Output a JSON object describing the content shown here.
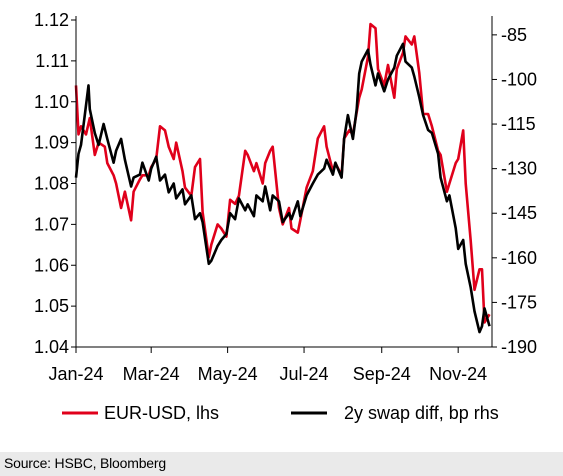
{
  "chart_data": {
    "type": "line",
    "title": "",
    "xlabel": "",
    "ylabel": "",
    "x_ticks": [
      "Jan-24",
      "Mar-24",
      "May-24",
      "Jul-24",
      "Sep-24",
      "Nov-24"
    ],
    "x_range": [
      "2024-01-01",
      "2024-11-28"
    ],
    "y_left": {
      "ticks": [
        "1.12",
        "1.11",
        "1.10",
        "1.09",
        "1.08",
        "1.07",
        "1.06",
        "1.05",
        "1.04"
      ],
      "ylim": [
        1.04,
        1.12
      ]
    },
    "y_right": {
      "ticks": [
        "-85",
        "-100",
        "-115",
        "-130",
        "-145",
        "-160",
        "-175",
        "-190"
      ],
      "ylim": [
        -190,
        -80
      ]
    },
    "legend_position": "bottom",
    "grid": false,
    "series": [
      {
        "name": "EUR-USD, lhs",
        "axis": "left",
        "color": "#e0001b",
        "points": [
          [
            "2024-01-01",
            1.104
          ],
          [
            "2024-01-03",
            1.092
          ],
          [
            "2024-01-05",
            1.094
          ],
          [
            "2024-01-09",
            1.092
          ],
          [
            "2024-01-12",
            1.096
          ],
          [
            "2024-01-16",
            1.087
          ],
          [
            "2024-01-19",
            1.09
          ],
          [
            "2024-01-24",
            1.089
          ],
          [
            "2024-01-26",
            1.085
          ],
          [
            "2024-01-31",
            1.082
          ],
          [
            "2024-02-02",
            1.08
          ],
          [
            "2024-02-06",
            1.074
          ],
          [
            "2024-02-09",
            1.078
          ],
          [
            "2024-02-14",
            1.071
          ],
          [
            "2024-02-16",
            1.078
          ],
          [
            "2024-02-21",
            1.081
          ],
          [
            "2024-02-23",
            1.082
          ],
          [
            "2024-02-28",
            1.082
          ],
          [
            "2024-03-01",
            1.084
          ],
          [
            "2024-03-05",
            1.086
          ],
          [
            "2024-03-08",
            1.094
          ],
          [
            "2024-03-12",
            1.093
          ],
          [
            "2024-03-15",
            1.089
          ],
          [
            "2024-03-19",
            1.086
          ],
          [
            "2024-03-21",
            1.09
          ],
          [
            "2024-03-26",
            1.083
          ],
          [
            "2024-03-28",
            1.079
          ],
          [
            "2024-04-02",
            1.077
          ],
          [
            "2024-04-05",
            1.084
          ],
          [
            "2024-04-09",
            1.086
          ],
          [
            "2024-04-11",
            1.073
          ],
          [
            "2024-04-16",
            1.062
          ],
          [
            "2024-04-18",
            1.065
          ],
          [
            "2024-04-23",
            1.07
          ],
          [
            "2024-04-26",
            1.069
          ],
          [
            "2024-04-30",
            1.067
          ],
          [
            "2024-05-03",
            1.076
          ],
          [
            "2024-05-07",
            1.075
          ],
          [
            "2024-05-10",
            1.077
          ],
          [
            "2024-05-15",
            1.088
          ],
          [
            "2024-05-17",
            1.087
          ],
          [
            "2024-05-22",
            1.083
          ],
          [
            "2024-05-24",
            1.085
          ],
          [
            "2024-05-29",
            1.08
          ],
          [
            "2024-05-31",
            1.085
          ],
          [
            "2024-06-04",
            1.088
          ],
          [
            "2024-06-06",
            1.089
          ],
          [
            "2024-06-11",
            1.074
          ],
          [
            "2024-06-14",
            1.07
          ],
          [
            "2024-06-19",
            1.074
          ],
          [
            "2024-06-21",
            1.069
          ],
          [
            "2024-06-26",
            1.068
          ],
          [
            "2024-06-28",
            1.071
          ],
          [
            "2024-07-03",
            1.079
          ],
          [
            "2024-07-08",
            1.083
          ],
          [
            "2024-07-12",
            1.091
          ],
          [
            "2024-07-17",
            1.094
          ],
          [
            "2024-07-19",
            1.089
          ],
          [
            "2024-07-24",
            1.083
          ],
          [
            "2024-07-26",
            1.085
          ],
          [
            "2024-07-31",
            1.082
          ],
          [
            "2024-08-02",
            1.091
          ],
          [
            "2024-08-06",
            1.093
          ],
          [
            "2024-08-09",
            1.092
          ],
          [
            "2024-08-14",
            1.101
          ],
          [
            "2024-08-16",
            1.103
          ],
          [
            "2024-08-21",
            1.111
          ],
          [
            "2024-08-23",
            1.119
          ],
          [
            "2024-08-27",
            1.118
          ],
          [
            "2024-08-29",
            1.108
          ],
          [
            "2024-09-03",
            1.104
          ],
          [
            "2024-09-06",
            1.109
          ],
          [
            "2024-09-11",
            1.101
          ],
          [
            "2024-09-13",
            1.108
          ],
          [
            "2024-09-18",
            1.112
          ],
          [
            "2024-09-20",
            1.116
          ],
          [
            "2024-09-25",
            1.114
          ],
          [
            "2024-09-27",
            1.116
          ],
          [
            "2024-10-01",
            1.107
          ],
          [
            "2024-10-04",
            1.097
          ],
          [
            "2024-10-08",
            1.097
          ],
          [
            "2024-10-11",
            1.094
          ],
          [
            "2024-10-16",
            1.088
          ],
          [
            "2024-10-18",
            1.087
          ],
          [
            "2024-10-23",
            1.078
          ],
          [
            "2024-10-25",
            1.08
          ],
          [
            "2024-10-30",
            1.085
          ],
          [
            "2024-11-01",
            1.086
          ],
          [
            "2024-11-05",
            1.093
          ],
          [
            "2024-11-07",
            1.08
          ],
          [
            "2024-11-11",
            1.066
          ],
          [
            "2024-11-14",
            1.054
          ],
          [
            "2024-11-18",
            1.059
          ],
          [
            "2024-11-20",
            1.059
          ],
          [
            "2024-11-22",
            1.046
          ],
          [
            "2024-11-26",
            1.048
          ]
        ]
      },
      {
        "name": "2y swap diff, bp rhs",
        "axis": "right",
        "color": "#000000",
        "points": [
          [
            "2024-01-01",
            -133
          ],
          [
            "2024-01-03",
            -125
          ],
          [
            "2024-01-05",
            -122
          ],
          [
            "2024-01-08",
            -112
          ],
          [
            "2024-01-11",
            -102
          ],
          [
            "2024-01-12",
            -110
          ],
          [
            "2024-01-16",
            -118
          ],
          [
            "2024-01-19",
            -122
          ],
          [
            "2024-01-23",
            -115
          ],
          [
            "2024-01-26",
            -120
          ],
          [
            "2024-01-31",
            -128
          ],
          [
            "2024-02-02",
            -124
          ],
          [
            "2024-02-06",
            -120
          ],
          [
            "2024-02-09",
            -127
          ],
          [
            "2024-02-14",
            -136
          ],
          [
            "2024-02-16",
            -133
          ],
          [
            "2024-02-21",
            -132
          ],
          [
            "2024-02-23",
            -128
          ],
          [
            "2024-02-28",
            -134
          ],
          [
            "2024-03-01",
            -130
          ],
          [
            "2024-03-05",
            -126
          ],
          [
            "2024-03-08",
            -134
          ],
          [
            "2024-03-12",
            -132
          ],
          [
            "2024-03-15",
            -138
          ],
          [
            "2024-03-19",
            -135
          ],
          [
            "2024-03-21",
            -140
          ],
          [
            "2024-03-26",
            -137
          ],
          [
            "2024-03-28",
            -142
          ],
          [
            "2024-04-02",
            -139
          ],
          [
            "2024-04-05",
            -147
          ],
          [
            "2024-04-09",
            -145
          ],
          [
            "2024-04-11",
            -148
          ],
          [
            "2024-04-16",
            -162
          ],
          [
            "2024-04-18",
            -161
          ],
          [
            "2024-04-23",
            -156
          ],
          [
            "2024-04-26",
            -154
          ],
          [
            "2024-04-30",
            -152
          ],
          [
            "2024-05-03",
            -145
          ],
          [
            "2024-05-07",
            -147
          ],
          [
            "2024-05-10",
            -140
          ],
          [
            "2024-05-15",
            -144
          ],
          [
            "2024-05-17",
            -142
          ],
          [
            "2024-05-22",
            -146
          ],
          [
            "2024-05-24",
            -139
          ],
          [
            "2024-05-29",
            -141
          ],
          [
            "2024-05-31",
            -136
          ],
          [
            "2024-06-04",
            -144
          ],
          [
            "2024-06-06",
            -139
          ],
          [
            "2024-06-11",
            -141
          ],
          [
            "2024-06-14",
            -148
          ],
          [
            "2024-06-19",
            -145
          ],
          [
            "2024-06-21",
            -147
          ],
          [
            "2024-06-26",
            -141
          ],
          [
            "2024-06-28",
            -146
          ],
          [
            "2024-07-03",
            -139
          ],
          [
            "2024-07-08",
            -135
          ],
          [
            "2024-07-12",
            -132
          ],
          [
            "2024-07-17",
            -130
          ],
          [
            "2024-07-19",
            -127
          ],
          [
            "2024-07-24",
            -132
          ],
          [
            "2024-07-26",
            -128
          ],
          [
            "2024-07-31",
            -133
          ],
          [
            "2024-08-02",
            -120
          ],
          [
            "2024-08-05",
            -112
          ],
          [
            "2024-08-09",
            -120
          ],
          [
            "2024-08-12",
            -110
          ],
          [
            "2024-08-14",
            -98
          ],
          [
            "2024-08-16",
            -94
          ],
          [
            "2024-08-21",
            -90
          ],
          [
            "2024-08-23",
            -95
          ],
          [
            "2024-08-27",
            -102
          ],
          [
            "2024-08-29",
            -98
          ],
          [
            "2024-09-03",
            -104
          ],
          [
            "2024-09-06",
            -100
          ],
          [
            "2024-09-11",
            -96
          ],
          [
            "2024-09-13",
            -92
          ],
          [
            "2024-09-18",
            -88
          ],
          [
            "2024-09-20",
            -94
          ],
          [
            "2024-09-25",
            -96
          ],
          [
            "2024-09-27",
            -99
          ],
          [
            "2024-10-01",
            -106
          ],
          [
            "2024-10-04",
            -112
          ],
          [
            "2024-10-08",
            -117
          ],
          [
            "2024-10-11",
            -118
          ],
          [
            "2024-10-16",
            -125
          ],
          [
            "2024-10-18",
            -133
          ],
          [
            "2024-10-23",
            -141
          ],
          [
            "2024-10-25",
            -139
          ],
          [
            "2024-10-30",
            -150
          ],
          [
            "2024-11-01",
            -157
          ],
          [
            "2024-11-05",
            -154
          ],
          [
            "2024-11-07",
            -162
          ],
          [
            "2024-11-11",
            -170
          ],
          [
            "2024-11-14",
            -178
          ],
          [
            "2024-11-18",
            -185
          ],
          [
            "2024-11-20",
            -183
          ],
          [
            "2024-11-22",
            -177
          ],
          [
            "2024-11-26",
            -183
          ]
        ]
      }
    ],
    "source": "Source: HSBC, Bloomberg"
  }
}
